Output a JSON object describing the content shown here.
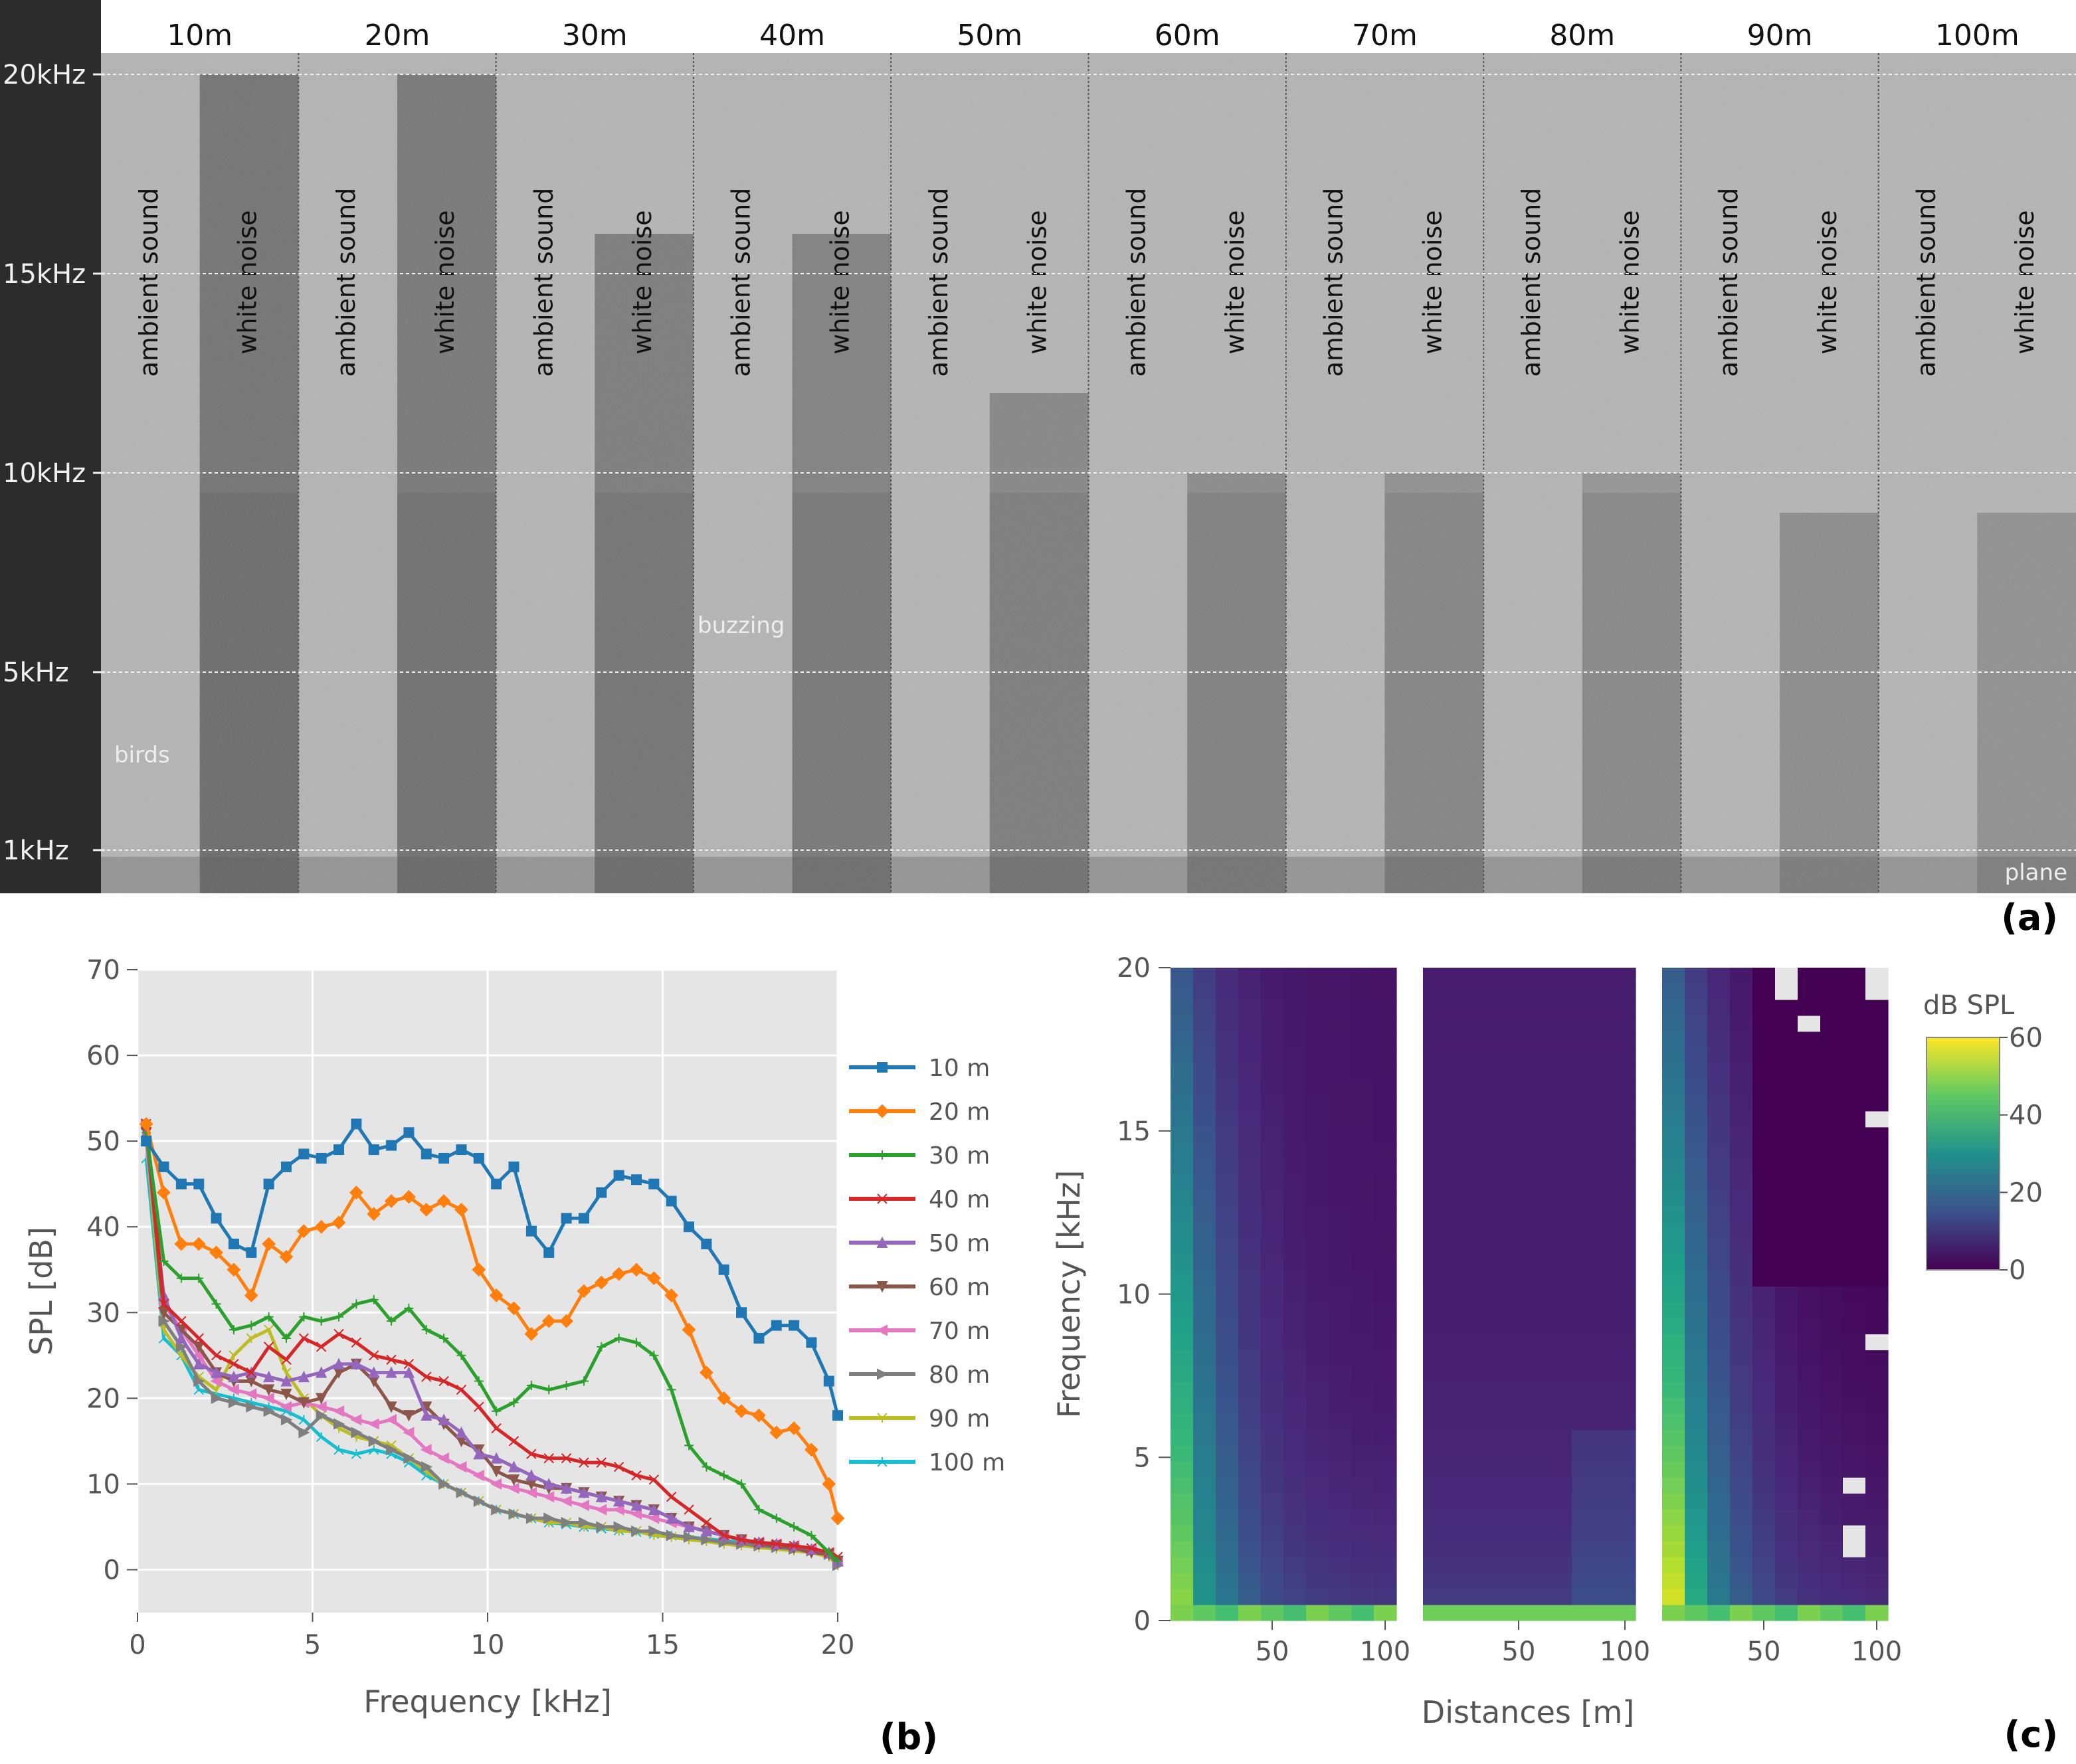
{
  "panel_labels": {
    "a": "(a)",
    "b": "(b)",
    "c": "(c)"
  },
  "spectrogram": {
    "distance_labels": [
      "10m",
      "20m",
      "30m",
      "40m",
      "50m",
      "60m",
      "70m",
      "80m",
      "90m",
      "100m"
    ],
    "frequency_labels": [
      "20kHz",
      "15kHz",
      "10kHz",
      "5kHz",
      "1kHz"
    ],
    "frequency_values": [
      20,
      15,
      10,
      5,
      1
    ],
    "segment_labels": {
      "ambient": "ambient sound",
      "noise": "white noise"
    },
    "noise_cutoff_khz": [
      20,
      20,
      16,
      16,
      12,
      10,
      10,
      10,
      9,
      9
    ],
    "annotations": {
      "birds": "birds",
      "buzzing": "buzzing",
      "plane": "plane"
    }
  },
  "chart_data": [
    {
      "type": "line",
      "xlabel": "Frequency [kHz]",
      "ylabel": "SPL [dB]",
      "xlim": [
        0,
        20
      ],
      "ylim": [
        -5,
        70
      ],
      "xticks": [
        "0",
        "5",
        "10",
        "15",
        "20"
      ],
      "yticks": [
        "0",
        "10",
        "20",
        "30",
        "40",
        "50",
        "60",
        "70"
      ],
      "legend": "right",
      "grid": true,
      "x": [
        0.25,
        0.75,
        1.25,
        1.75,
        2.25,
        2.75,
        3.25,
        3.75,
        4.25,
        4.75,
        5.25,
        5.75,
        6.25,
        6.75,
        7.25,
        7.75,
        8.25,
        8.75,
        9.25,
        9.75,
        10.25,
        10.75,
        11.25,
        11.75,
        12.25,
        12.75,
        13.25,
        13.75,
        14.25,
        14.75,
        15.25,
        15.75,
        16.25,
        16.75,
        17.25,
        17.75,
        18.25,
        18.75,
        19.25,
        19.75,
        20.0
      ],
      "series": [
        {
          "name": "10 m",
          "color": "#1f77b4",
          "marker": "square",
          "values": [
            50,
            47,
            45,
            45,
            41,
            38,
            37,
            45,
            47,
            48.5,
            48,
            49,
            52,
            49,
            49.5,
            51,
            48.5,
            48,
            49,
            48,
            45,
            47,
            39.5,
            37,
            41,
            41,
            44,
            46,
            45.5,
            45,
            43,
            40,
            38,
            35,
            30,
            27,
            28.5,
            28.5,
            26.5,
            22,
            18
          ]
        },
        {
          "name": "20 m",
          "color": "#ff7f0e",
          "marker": "diamond",
          "values": [
            52,
            44,
            38,
            38,
            37,
            35,
            32,
            38,
            36.5,
            39.5,
            40,
            40.5,
            44,
            41.5,
            43,
            43.5,
            42,
            43,
            42,
            35,
            32,
            30.5,
            27.5,
            29,
            29,
            32.5,
            33.5,
            34.5,
            35,
            34,
            32,
            28,
            23,
            20,
            18.5,
            18,
            16,
            16.5,
            14,
            10,
            6
          ]
        },
        {
          "name": "30 m",
          "color": "#2ca02c",
          "marker": "plus",
          "values": [
            51,
            36,
            34,
            34,
            31,
            28,
            28.5,
            29.5,
            27,
            29.5,
            29,
            29.5,
            31,
            31.5,
            29,
            30.5,
            28,
            27,
            25,
            22,
            18.5,
            19.5,
            21.5,
            21,
            21.5,
            22,
            26,
            27,
            26.5,
            25,
            21,
            14.5,
            12,
            11,
            10,
            7,
            6,
            5,
            4,
            2,
            1
          ]
        },
        {
          "name": "40 m",
          "color": "#d62728",
          "marker": "x",
          "values": [
            52,
            31,
            29,
            27,
            25,
            24,
            23,
            26,
            24.5,
            27,
            26,
            27.5,
            26.5,
            25,
            24.5,
            24,
            22.5,
            22,
            21,
            19,
            16.5,
            15,
            13.5,
            13,
            13,
            12.5,
            12.5,
            12,
            11,
            10.5,
            8.5,
            7,
            5.5,
            4,
            3.5,
            3.2,
            3,
            2.8,
            2.5,
            2,
            1.5
          ]
        },
        {
          "name": "50 m",
          "color": "#9467bd",
          "marker": "triangle-up",
          "values": [
            51,
            32,
            27,
            24,
            23,
            22.5,
            23,
            22.5,
            22,
            22.5,
            23,
            24,
            24,
            23,
            23,
            23,
            18,
            17.5,
            16,
            13.5,
            13,
            12,
            11,
            10,
            9.5,
            9,
            8.5,
            8,
            7.5,
            7,
            6,
            5,
            4.5,
            4,
            3.5,
            3.2,
            3,
            2.8,
            2.4,
            2,
            1
          ]
        },
        {
          "name": "60 m",
          "color": "#8c564b",
          "marker": "triangle-down",
          "values": [
            51,
            30,
            28,
            26,
            23,
            22,
            22,
            21,
            20.5,
            19.5,
            20,
            23,
            24,
            22,
            19,
            18,
            19,
            17,
            15,
            14,
            11.5,
            10.5,
            10,
            9.5,
            9.5,
            9,
            8.5,
            8,
            7.5,
            7,
            6,
            5,
            4.5,
            4,
            3.5,
            3,
            2.8,
            2.5,
            2,
            1.8,
            1
          ]
        },
        {
          "name": "70 m",
          "color": "#e377c2",
          "marker": "triangle-left",
          "values": [
            50,
            31,
            28,
            25,
            22,
            21,
            20.5,
            20,
            19,
            19.5,
            19,
            18.5,
            17.5,
            17,
            17.5,
            16,
            14,
            13,
            12,
            11,
            10,
            9.5,
            9,
            8.5,
            8,
            7.5,
            7,
            7,
            6.5,
            6,
            5.5,
            5,
            4.5,
            4,
            3.5,
            3.2,
            3,
            2.8,
            2.5,
            2,
            1
          ]
        },
        {
          "name": "80 m",
          "color": "#7f7f7f",
          "marker": "triangle-right",
          "values": [
            52,
            29,
            26,
            22,
            20,
            19.5,
            19,
            18.5,
            17.5,
            16,
            18,
            17,
            16,
            15,
            14,
            13,
            12,
            10,
            9,
            8,
            7,
            6.5,
            6,
            6,
            5.5,
            5.5,
            5,
            5,
            4.5,
            4.5,
            4,
            3.8,
            3.5,
            3.2,
            3,
            2.8,
            2.6,
            2.4,
            2.2,
            1.8,
            0.5
          ]
        },
        {
          "name": "90 m",
          "color": "#bcbd22",
          "marker": "tri-down",
          "values": [
            50,
            28,
            25,
            22.5,
            21,
            25,
            27,
            28,
            23,
            20,
            18,
            16.5,
            15.5,
            15,
            14.5,
            13,
            11.5,
            10,
            9,
            8,
            7,
            6.5,
            6,
            5.5,
            5.5,
            5,
            5,
            4.5,
            4.5,
            4,
            3.8,
            3.5,
            3.3,
            3,
            2.8,
            2.6,
            2.4,
            2.2,
            2,
            1.5,
            0.5
          ]
        },
        {
          "name": "100 m",
          "color": "#17becf",
          "marker": "tri-up",
          "values": [
            48,
            27,
            25,
            21,
            20.5,
            20,
            19.5,
            19,
            18.5,
            17.5,
            15.5,
            14,
            13.5,
            14,
            13.5,
            12.5,
            11,
            10,
            9,
            8,
            7,
            6.5,
            6,
            5.5,
            5.3,
            5,
            4.8,
            4.6,
            4.4,
            4.2,
            4,
            3.8,
            3.6,
            3.4,
            3.2,
            3,
            2.8,
            2.6,
            2.3,
            2,
            1
          ]
        }
      ]
    },
    {
      "type": "heatmap",
      "xlabel": "Distances [m]",
      "ylabel": "Frequency [kHz]",
      "ylim": [
        0,
        20
      ],
      "xlim": [
        10,
        100
      ],
      "x_ticks_per_panel": [
        "50",
        "100"
      ],
      "yticks": [
        "0",
        "5",
        "10",
        "15",
        "20"
      ],
      "panels": 3,
      "colorbar": {
        "label": "dB SPL",
        "ticks": [
          "0",
          "20",
          "40",
          "60"
        ],
        "range": [
          0,
          60
        ]
      },
      "description": "Three SPL heatmaps over distance (10–100 m) and frequency (0–20 kHz)"
    }
  ]
}
